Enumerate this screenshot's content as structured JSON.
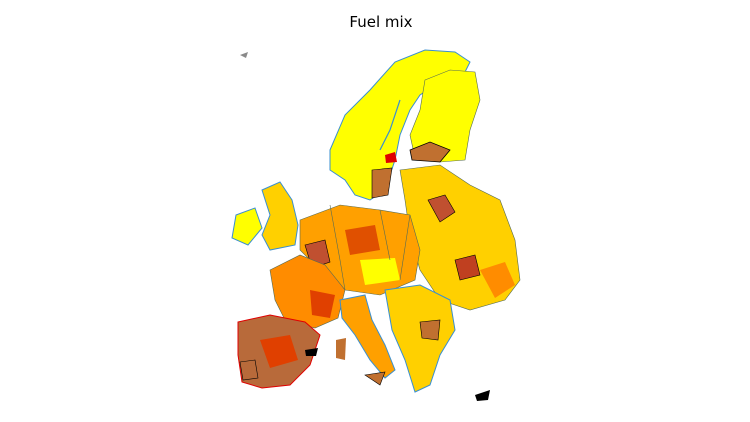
{
  "title": "Fuel mix"
}
